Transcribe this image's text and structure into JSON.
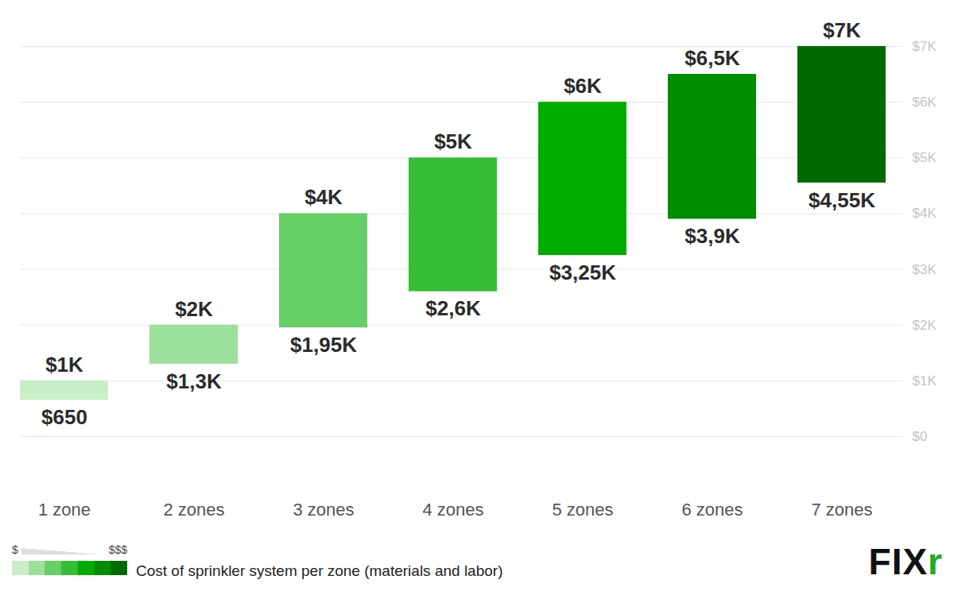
{
  "chart_data": {
    "type": "bar",
    "categories": [
      "1 zone",
      "2 zones",
      "3 zones",
      "4 zones",
      "5 zones",
      "6 zones",
      "7 zones"
    ],
    "low": [
      650,
      1300,
      1950,
      2600,
      3250,
      3900,
      4550
    ],
    "high": [
      1000,
      2000,
      4000,
      5000,
      6000,
      6500,
      7000
    ],
    "low_labels": [
      "$650",
      "$1,3K",
      "$1,95K",
      "$2,6K",
      "$3,25K",
      "$3,9K",
      "$4,55K"
    ],
    "high_labels": [
      "$1K",
      "$2K",
      "$4K",
      "$5K",
      "$6K",
      "$6,5K",
      "$7K"
    ],
    "colors": [
      "#c9efc9",
      "#9be09b",
      "#66cf66",
      "#33be33",
      "#00ad00",
      "#008e00",
      "#006a00"
    ],
    "ylim": [
      0,
      7000
    ],
    "yticks": [
      {
        "value": 0,
        "label": "$0"
      },
      {
        "value": 1000,
        "label": "$1K"
      },
      {
        "value": 2000,
        "label": "$2K"
      },
      {
        "value": 3000,
        "label": "$3K"
      },
      {
        "value": 4000,
        "label": "$4K"
      },
      {
        "value": 5000,
        "label": "$5K"
      },
      {
        "value": 6000,
        "label": "$6K"
      },
      {
        "value": 7000,
        "label": "$7K"
      }
    ],
    "grid": true,
    "data_labels": true,
    "legend_title": "Cost of sprinkler system per zone (materials and labor)",
    "legend_low": "$",
    "legend_high": "$$$",
    "brand": "FIXr"
  }
}
